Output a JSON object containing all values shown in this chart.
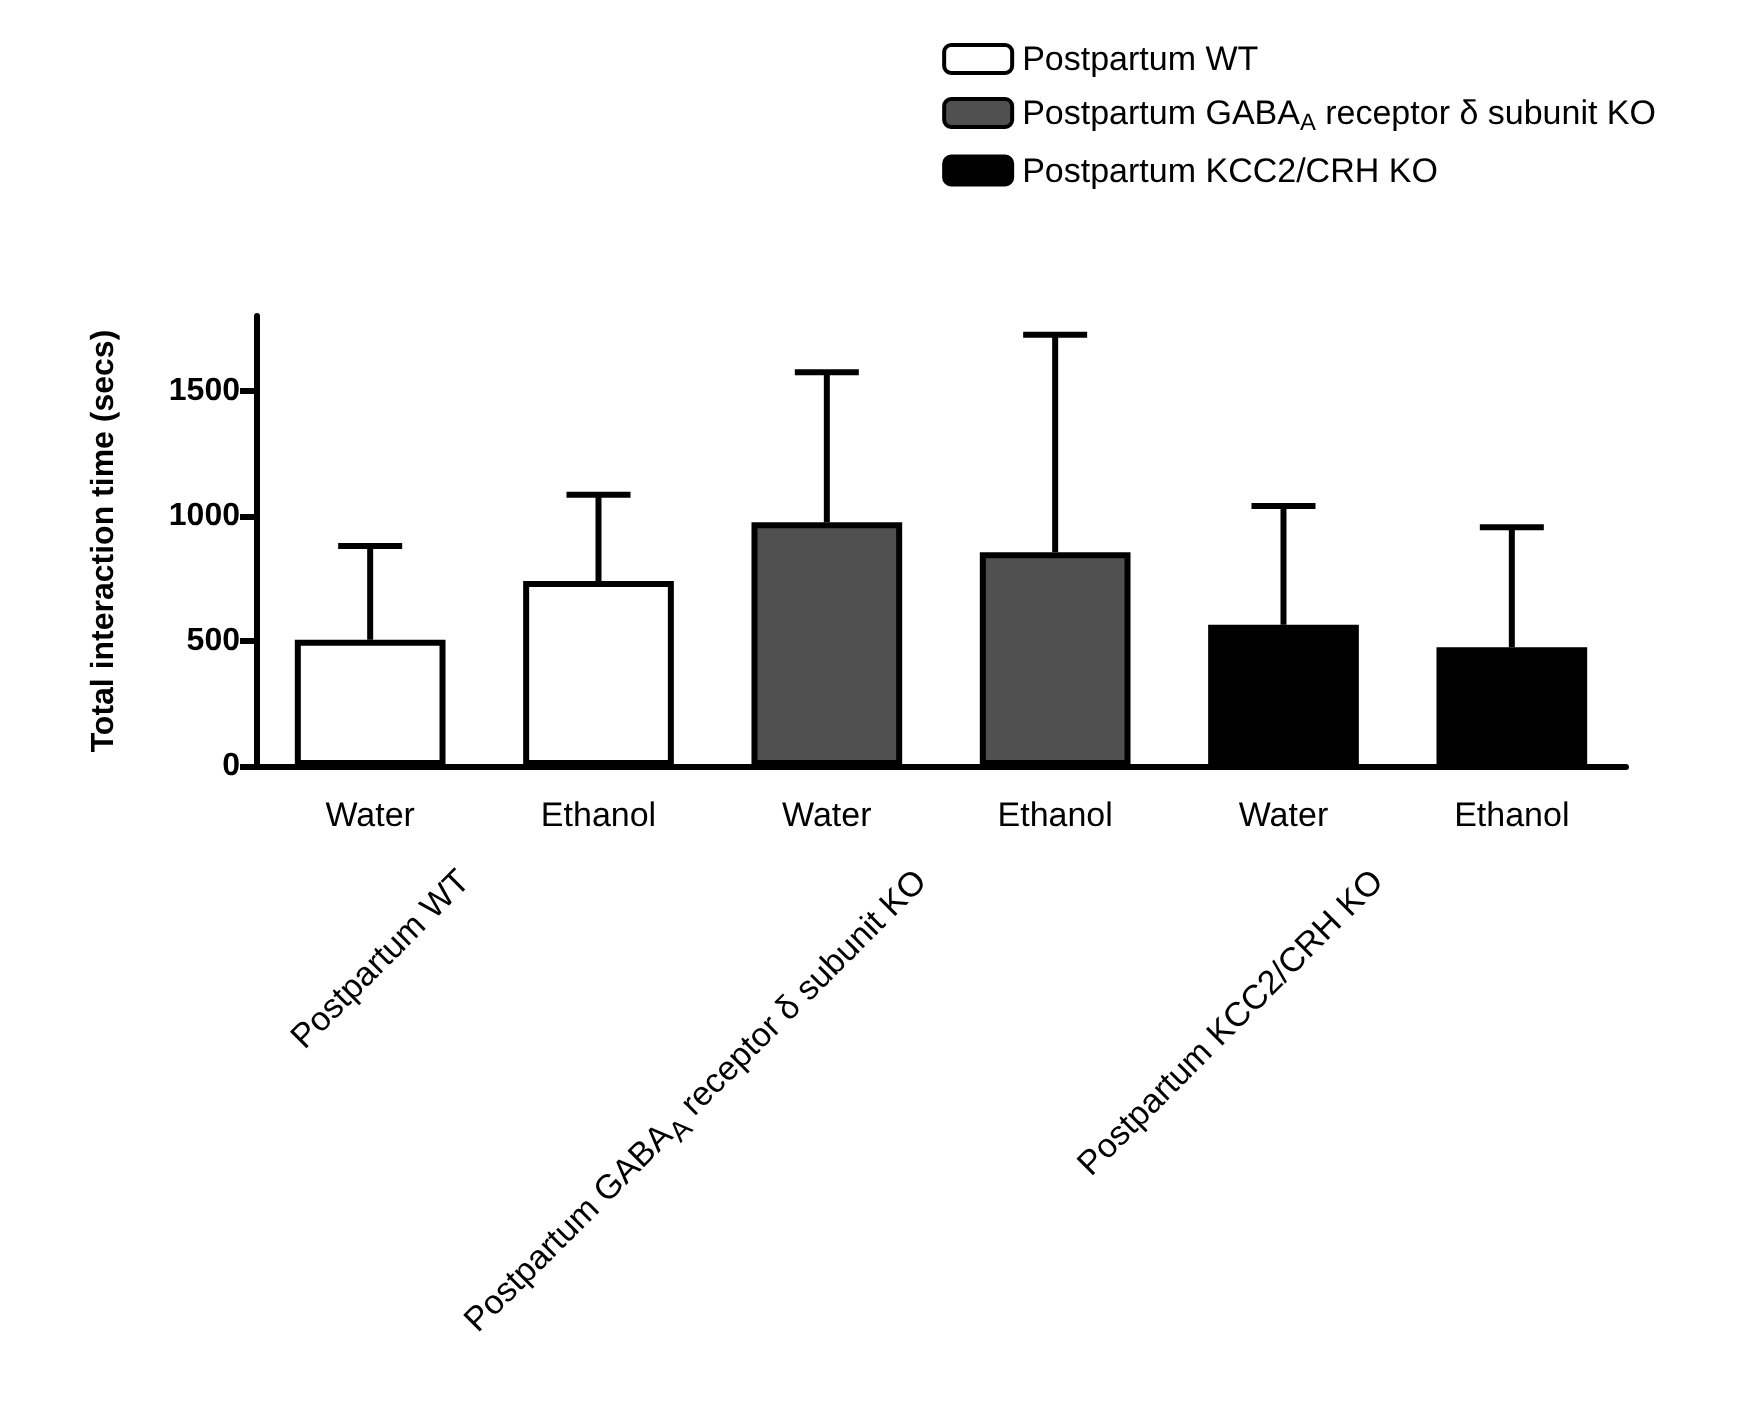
{
  "chart_data": {
    "type": "bar",
    "ylabel": "Total interaction time (secs)",
    "categories": [
      "Water",
      "Ethanol",
      "Water",
      "Ethanol",
      "Water",
      "Ethanol"
    ],
    "series": [
      {
        "name": "Postpartum WT",
        "color": "#ffffff",
        "values": [
          505,
          740,
          null,
          null,
          null,
          null
        ],
        "errors": [
          [
            505,
            880
          ],
          [
            740,
            1085
          ],
          null,
          null,
          null,
          null
        ]
      },
      {
        "name": "Postpartum GABA$_{A}$ receptor δ subunit KO",
        "color": "#505050",
        "values": [
          null,
          null,
          975,
          855,
          null,
          null
        ],
        "errors": [
          null,
          null,
          [
            975,
            1575
          ],
          [
            855,
            1725
          ],
          null,
          null
        ]
      },
      {
        "name": "Postpartum KCC2/CRH KO",
        "color": "#000000",
        "values": [
          null,
          null,
          null,
          null,
          565,
          475
        ],
        "errors": [
          null,
          null,
          null,
          null,
          [
            565,
            1040
          ],
          [
            475,
            955
          ]
        ]
      }
    ],
    "annotations": [
      "Postpartum WT",
      "Postpartum GABA$_{A}$ receptor δ subunit KO",
      "Postpartum KCC2/CRH KO"
    ],
    "ylim": [
      0,
      1800
    ],
    "yticks": [
      0,
      500,
      1000,
      1500
    ],
    "grid": false,
    "legend": "top right"
  }
}
